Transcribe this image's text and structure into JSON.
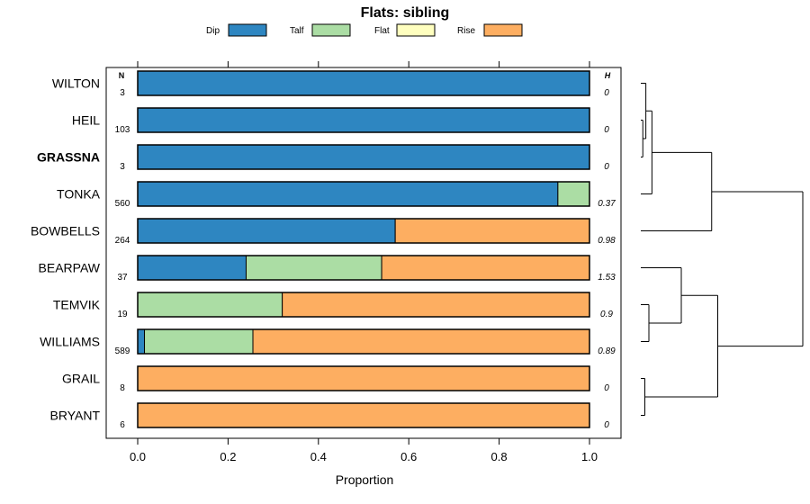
{
  "chart_data": {
    "type": "bar",
    "stacked": true,
    "orientation": "horizontal",
    "title": "Flats: sibling",
    "xlabel": "Proportion",
    "ylabel": "",
    "xlim": [
      0,
      1
    ],
    "xticks": [
      "0.0",
      "0.2",
      "0.4",
      "0.6",
      "0.8",
      "1.0"
    ],
    "count_header": "N",
    "h_header": "H",
    "legend_position": "top",
    "categories": [
      "WILTON",
      "HEIL",
      "GRASSNA",
      "TONKA",
      "BOWBELLS",
      "BEARPAW",
      "TEMVIK",
      "WILLIAMS",
      "GRAIL",
      "BRYANT"
    ],
    "highlighted_category": "GRASSNA",
    "counts": [
      "3",
      "103",
      "3",
      "560",
      "264",
      "37",
      "19",
      "589",
      "8",
      "6"
    ],
    "h_values": [
      "0",
      "0",
      "0",
      "0.37",
      "0.98",
      "1.53",
      "0.9",
      "0.89",
      "0",
      "0"
    ],
    "series": [
      {
        "name": "Dip",
        "color": "#2e86c1",
        "values": [
          1.0,
          1.0,
          1.0,
          0.93,
          0.57,
          0.24,
          0.0,
          0.015,
          0.0,
          0.0
        ]
      },
      {
        "name": "Talf",
        "color": "#abdda4",
        "values": [
          0.0,
          0.0,
          0.0,
          0.07,
          0.0,
          0.3,
          0.32,
          0.24,
          0.0,
          0.0
        ]
      },
      {
        "name": "Flat",
        "color": "#ffffbf",
        "values": [
          0.0,
          0.0,
          0.0,
          0.0,
          0.0,
          0.0,
          0.0,
          0.0,
          0.0,
          0.0
        ]
      },
      {
        "name": "Rise",
        "color": "#fdae61",
        "values": [
          0.0,
          0.0,
          0.0,
          0.0,
          0.43,
          0.46,
          0.68,
          0.745,
          1.0,
          1.0
        ]
      }
    ],
    "dendrogram": {
      "merges": [
        {
          "left": "HEIL",
          "right": "GRASSNA",
          "height": 0.1
        },
        {
          "left": "WILTON",
          "right": "HEIL+GRASSNA",
          "height": 0.25
        },
        {
          "left": "WILTON+HEIL+GRASSNA",
          "right": "TONKA",
          "height": 0.55
        },
        {
          "left": "A",
          "right": "BOWBELLS",
          "height": 3.5
        },
        {
          "left": "TEMVIK",
          "right": "WILLIAMS",
          "height": 0.4
        },
        {
          "left": "BEARPAW",
          "right": "TEMVIK+WILLIAMS",
          "height": 2.0
        },
        {
          "left": "GRAIL",
          "right": "BRYANT",
          "height": 0.2
        },
        {
          "left": "B",
          "right": "GRAIL+BRYANT",
          "height": 3.8
        },
        {
          "left": "A+BOWBELLS",
          "right": "B+GRAIL+BRYANT",
          "height": 8.0
        }
      ]
    }
  }
}
